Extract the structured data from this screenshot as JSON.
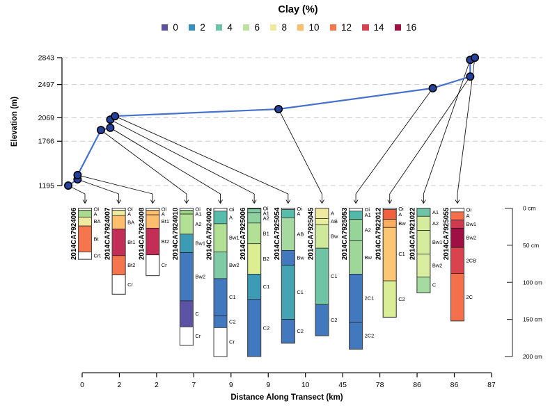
{
  "chart_data": {
    "type": "composite: elevation transect line plot + soil profile clay columns",
    "title": "Clay (%)",
    "ylabel": "Elevation (m)",
    "xlabel": "Distance Along Transect (km)",
    "y_ticks": [
      2843,
      2497,
      2069,
      1766,
      1195
    ],
    "y_range": [
      1195,
      2843
    ],
    "x_tick_labels": [
      "0",
      "2",
      "2",
      "7",
      "9",
      "9",
      "10",
      "45",
      "78",
      "86",
      "86",
      "87"
    ],
    "grid": "dashed horizontal at each elevation tick",
    "legend": {
      "title": "Clay (%)",
      "position": "top center",
      "values": [
        "0",
        "2",
        "4",
        "6",
        "8",
        "10",
        "12",
        "14",
        "16"
      ],
      "colors": [
        "#5e519e",
        "#3a8fbf",
        "#6ec5a3",
        "#bce4a0",
        "#eeea9f",
        "#fdbe6e",
        "#f4764d",
        "#d6434e",
        "#9e0f42"
      ]
    },
    "elevation_profile": {
      "line_color": "#4671cd",
      "point_fill": "#26419b",
      "points": [
        {
          "km": 0,
          "elevation_m": 1195
        },
        {
          "km": 2,
          "elevation_m": 1275
        },
        {
          "km": 2,
          "elevation_m": 1330
        },
        {
          "km": 7,
          "elevation_m": 1910
        },
        {
          "km": 9,
          "elevation_m": 1940
        },
        {
          "km": 9,
          "elevation_m": 2045
        },
        {
          "km": 10,
          "elevation_m": 2090
        },
        {
          "km": 45,
          "elevation_m": 2180
        },
        {
          "km": 78,
          "elevation_m": 2450
        },
        {
          "km": 86,
          "elevation_m": 2600
        },
        {
          "km": 86,
          "elevation_m": 2815
        },
        {
          "km": 87,
          "elevation_m": 2843
        }
      ]
    },
    "depth_scale": {
      "ticks_cm": [
        0,
        50,
        100,
        150,
        200
      ],
      "labels": [
        "0 cm",
        "50 cm",
        "100 cm",
        "150 cm",
        "200 cm"
      ]
    },
    "profiles": [
      {
        "id": "2014CA7924006",
        "distance_km": 0,
        "horizons": [
          {
            "name": "Oi",
            "top_cm": 0,
            "bottom_cm": 3,
            "clay_pct": null,
            "color": "#ffffff"
          },
          {
            "name": "A",
            "top_cm": 3,
            "bottom_cm": 12,
            "clay_pct": 6,
            "color": "#a9dc8e"
          },
          {
            "name": "BA",
            "top_cm": 12,
            "bottom_cm": 24,
            "clay_pct": 8,
            "color": "#eeea9f"
          },
          {
            "name": "Bt",
            "top_cm": 24,
            "bottom_cm": 59,
            "clay_pct": 12,
            "color": "#f4754e"
          },
          {
            "name": "Crt",
            "top_cm": 59,
            "bottom_cm": 69,
            "clay_pct": null,
            "color": "#ffffff"
          }
        ]
      },
      {
        "id": "2014CA7924007",
        "distance_km": 2,
        "horizons": [
          {
            "name": "Oi",
            "top_cm": 0,
            "bottom_cm": 3,
            "clay_pct": null,
            "color": "#ffffff"
          },
          {
            "name": "A",
            "top_cm": 3,
            "bottom_cm": 10,
            "clay_pct": 8,
            "color": "#eeea9f"
          },
          {
            "name": "BA",
            "top_cm": 10,
            "bottom_cm": 28,
            "clay_pct": 10,
            "color": "#fdbe6e"
          },
          {
            "name": "Bt1",
            "top_cm": 28,
            "bottom_cm": 64,
            "clay_pct": 14,
            "color": "#c22e55"
          },
          {
            "name": "Bt2",
            "top_cm": 64,
            "bottom_cm": 90,
            "clay_pct": 12,
            "color": "#f4754e"
          },
          {
            "name": "Cr",
            "top_cm": 90,
            "bottom_cm": 116,
            "clay_pct": null,
            "color": "#ffffff"
          }
        ]
      },
      {
        "id": "2014CA7924008",
        "distance_km": 2,
        "horizons": [
          {
            "name": "Oi",
            "top_cm": 0,
            "bottom_cm": 3,
            "clay_pct": null,
            "color": "#ffffff"
          },
          {
            "name": "A",
            "top_cm": 3,
            "bottom_cm": 9,
            "clay_pct": 10,
            "color": "#fdbe6e"
          },
          {
            "name": "Bt1",
            "top_cm": 9,
            "bottom_cm": 27,
            "clay_pct": 10,
            "color": "#fdbe6e"
          },
          {
            "name": "Bt2",
            "top_cm": 27,
            "bottom_cm": 63,
            "clay_pct": 14,
            "color": "#c22e55"
          },
          {
            "name": "Cr",
            "top_cm": 63,
            "bottom_cm": 91,
            "clay_pct": null,
            "color": "#ffffff"
          }
        ]
      },
      {
        "id": "2014CA7924010",
        "distance_km": 7,
        "horizons": [
          {
            "name": "Oi",
            "top_cm": 0,
            "bottom_cm": 3,
            "clay_pct": null,
            "color": "#ffffff"
          },
          {
            "name": "A1",
            "top_cm": 3,
            "bottom_cm": 8,
            "clay_pct": 6,
            "color": "#9ed688"
          },
          {
            "name": "A2",
            "top_cm": 8,
            "bottom_cm": 35,
            "clay_pct": 6,
            "color": "#b2e094"
          },
          {
            "name": "Bw1",
            "top_cm": 35,
            "bottom_cm": 60,
            "clay_pct": 3,
            "color": "#3d9bb5"
          },
          {
            "name": "Bw2",
            "top_cm": 60,
            "bottom_cm": 125,
            "clay_pct": 2,
            "color": "#4278bd"
          },
          {
            "name": "C",
            "top_cm": 125,
            "bottom_cm": 160,
            "clay_pct": 0,
            "color": "#5c53a5"
          },
          {
            "name": "Cr",
            "top_cm": 160,
            "bottom_cm": 185,
            "clay_pct": null,
            "color": "#ffffff"
          }
        ]
      },
      {
        "id": "2014CA7924002",
        "distance_km": 9,
        "horizons": [
          {
            "name": "Oi",
            "top_cm": 0,
            "bottom_cm": 4,
            "clay_pct": null,
            "color": "#ffffff"
          },
          {
            "name": "A",
            "top_cm": 4,
            "bottom_cm": 21,
            "clay_pct": 4,
            "color": "#58bcab"
          },
          {
            "name": "Bw1",
            "top_cm": 21,
            "bottom_cm": 59,
            "clay_pct": 6,
            "color": "#b2e094"
          },
          {
            "name": "Bw2",
            "top_cm": 59,
            "bottom_cm": 95,
            "clay_pct": 5,
            "color": "#7ecba6"
          },
          {
            "name": "C1",
            "top_cm": 95,
            "bottom_cm": 145,
            "clay_pct": 2,
            "color": "#4278bd"
          },
          {
            "name": "C2",
            "top_cm": 145,
            "bottom_cm": 161,
            "clay_pct": 2,
            "color": "#4278bd"
          },
          {
            "name": "Cr",
            "top_cm": 161,
            "bottom_cm": 200,
            "clay_pct": null,
            "color": "#ffffff"
          }
        ]
      },
      {
        "id": "2014CA7925006",
        "distance_km": 9,
        "horizons": [
          {
            "name": "Oi",
            "top_cm": 0,
            "bottom_cm": 1,
            "clay_pct": null,
            "color": "#222222"
          },
          {
            "name": "A1",
            "top_cm": 1,
            "bottom_cm": 6,
            "clay_pct": 4,
            "color": "#7ccaa0"
          },
          {
            "name": "A2",
            "top_cm": 6,
            "bottom_cm": 20,
            "clay_pct": 4,
            "color": "#8fd2a0"
          },
          {
            "name": "B1",
            "top_cm": 20,
            "bottom_cm": 48,
            "clay_pct": 6,
            "color": "#b2e094"
          },
          {
            "name": "B2",
            "top_cm": 48,
            "bottom_cm": 89,
            "clay_pct": 7,
            "color": "#dded92"
          },
          {
            "name": "C1",
            "top_cm": 89,
            "bottom_cm": 123,
            "clay_pct": 3,
            "color": "#3d9bb5"
          },
          {
            "name": "C2",
            "top_cm": 123,
            "bottom_cm": 200,
            "clay_pct": 2,
            "color": "#4278bd"
          }
        ]
      },
      {
        "id": "2014CA7925054",
        "distance_km": 10,
        "horizons": [
          {
            "name": "Oi",
            "top_cm": 0,
            "bottom_cm": 2,
            "clay_pct": null,
            "color": "#ffffff"
          },
          {
            "name": "A",
            "top_cm": 2,
            "bottom_cm": 13,
            "clay_pct": 4,
            "color": "#58bcab"
          },
          {
            "name": "AB",
            "top_cm": 13,
            "bottom_cm": 57,
            "clay_pct": 6,
            "color": "#a5d9a0"
          },
          {
            "name": "Bw",
            "top_cm": 57,
            "bottom_cm": 77,
            "clay_pct": 2,
            "color": "#4278bd"
          },
          {
            "name": "C1",
            "top_cm": 77,
            "bottom_cm": 150,
            "clay_pct": 3,
            "color": "#44a4b2"
          },
          {
            "name": "C2",
            "top_cm": 150,
            "bottom_cm": 182,
            "clay_pct": 2,
            "color": "#4278bd"
          }
        ]
      },
      {
        "id": "2014CA7925045",
        "distance_km": 45,
        "horizons": [
          {
            "name": "A",
            "top_cm": 0,
            "bottom_cm": 14,
            "clay_pct": 8,
            "color": "#eeea9f"
          },
          {
            "name": "AB",
            "top_cm": 14,
            "bottom_cm": 22,
            "clay_pct": 8,
            "color": "#e9ee9b"
          },
          {
            "name": "Bw",
            "top_cm": 22,
            "bottom_cm": 54,
            "clay_pct": 7,
            "color": "#cfe99b"
          },
          {
            "name": "C1",
            "top_cm": 54,
            "bottom_cm": 130,
            "clay_pct": 4,
            "color": "#6ec4a4"
          },
          {
            "name": "C2",
            "top_cm": 130,
            "bottom_cm": 172,
            "clay_pct": 2,
            "color": "#4278bd"
          }
        ]
      },
      {
        "id": "2014CA7925053",
        "distance_km": 78,
        "horizons": [
          {
            "name": "Oi",
            "top_cm": 0,
            "bottom_cm": 4,
            "clay_pct": null,
            "color": "#ffffff"
          },
          {
            "name": "A1",
            "top_cm": 4,
            "bottom_cm": 15,
            "clay_pct": 4,
            "color": "#52b8a8"
          },
          {
            "name": "A2",
            "top_cm": 15,
            "bottom_cm": 44,
            "clay_pct": 5,
            "color": "#96d497"
          },
          {
            "name": "Bw",
            "top_cm": 44,
            "bottom_cm": 89,
            "clay_pct": 5,
            "color": "#9fd79b"
          },
          {
            "name": "2C1",
            "top_cm": 89,
            "bottom_cm": 154,
            "clay_pct": 2,
            "color": "#4278bd"
          },
          {
            "name": "2C2",
            "top_cm": 154,
            "bottom_cm": 190,
            "clay_pct": 2,
            "color": "#4278bd"
          }
        ]
      },
      {
        "id": "2014CA7922012",
        "distance_km": 86,
        "horizons": [
          {
            "name": "Oi",
            "top_cm": 0,
            "bottom_cm": 2,
            "clay_pct": null,
            "color": "#ffffff"
          },
          {
            "name": "A",
            "top_cm": 2,
            "bottom_cm": 15,
            "clay_pct": 12,
            "color": "#f2603f"
          },
          {
            "name": "Bw",
            "top_cm": 15,
            "bottom_cm": 26,
            "clay_pct": 10,
            "color": "#fdae61"
          },
          {
            "name": "C1",
            "top_cm": 26,
            "bottom_cm": 98,
            "clay_pct": 9,
            "color": "#fdc674"
          },
          {
            "name": "C2",
            "top_cm": 98,
            "bottom_cm": 147,
            "clay_pct": 7,
            "color": "#d8ed96"
          }
        ]
      },
      {
        "id": "2014CA7921022",
        "distance_km": 86,
        "horizons": [
          {
            "name": "A1",
            "top_cm": 0,
            "bottom_cm": 11,
            "clay_pct": 4,
            "color": "#6ec4a4"
          },
          {
            "name": "A2",
            "top_cm": 11,
            "bottom_cm": 30,
            "clay_pct": 7,
            "color": "#d5ec9c"
          },
          {
            "name": "Bw1",
            "top_cm": 30,
            "bottom_cm": 62,
            "clay_pct": 7,
            "color": "#d5ec9c"
          },
          {
            "name": "Bw2",
            "top_cm": 62,
            "bottom_cm": 93,
            "clay_pct": 7,
            "color": "#d9ee9e"
          },
          {
            "name": "C",
            "top_cm": 93,
            "bottom_cm": 114,
            "clay_pct": 5,
            "color": "#a5dba0"
          }
        ]
      },
      {
        "id": "2014CA7925055",
        "distance_km": 87,
        "horizons": [
          {
            "name": "Oi",
            "top_cm": 0,
            "bottom_cm": 5,
            "clay_pct": null,
            "color": "#ffffff"
          },
          {
            "name": "A",
            "top_cm": 5,
            "bottom_cm": 16,
            "clay_pct": 12,
            "color": "#f3704a"
          },
          {
            "name": "Bw1",
            "top_cm": 16,
            "bottom_cm": 27,
            "clay_pct": 14,
            "color": "#cf3a4e"
          },
          {
            "name": "Bw2",
            "top_cm": 27,
            "bottom_cm": 53,
            "clay_pct": 16,
            "color": "#9e0f44"
          },
          {
            "name": "2CB",
            "top_cm": 53,
            "bottom_cm": 88,
            "clay_pct": 14,
            "color": "#d8434e"
          },
          {
            "name": "2C",
            "top_cm": 88,
            "bottom_cm": 152,
            "clay_pct": 12,
            "color": "#f3704a"
          }
        ]
      }
    ]
  }
}
